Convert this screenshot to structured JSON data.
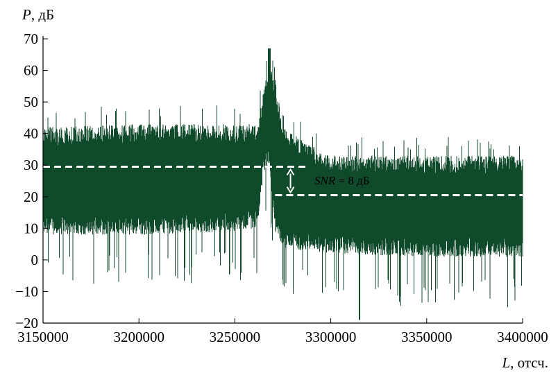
{
  "chart_data": {
    "type": "line",
    "title": "",
    "ylabel_var": "P",
    "ylabel_unit": ", дБ",
    "xlabel_var": "L",
    "xlabel_unit": ", отсч.",
    "xlim": [
      3150000,
      3400000
    ],
    "ylim": [
      -20,
      70
    ],
    "x_ticks": [
      "3150000",
      "3200000",
      "3250000",
      "3300000",
      "3350000",
      "3400000"
    ],
    "y_ticks": [
      "70",
      "60",
      "50",
      "40",
      "30",
      "20",
      "10",
      "0",
      "−10",
      "−20"
    ],
    "x_tick_values": [
      3150000,
      3200000,
      3250000,
      3300000,
      3350000,
      3400000
    ],
    "y_tick_values": [
      70,
      60,
      50,
      40,
      30,
      20,
      10,
      0,
      -10,
      -20
    ],
    "series_color": "#0f4a2a",
    "noise_envelope": [
      {
        "x": 3150000,
        "low": 8,
        "high": 42
      },
      {
        "x": 3200000,
        "low": 8,
        "high": 43
      },
      {
        "x": 3250000,
        "low": 9,
        "high": 43
      },
      {
        "x": 3262000,
        "low": 10,
        "high": 43
      },
      {
        "x": 3265000,
        "low": 28,
        "high": 55
      },
      {
        "x": 3268000,
        "low": 30,
        "high": 63
      },
      {
        "x": 3271000,
        "low": 8,
        "high": 58
      },
      {
        "x": 3275000,
        "low": 4,
        "high": 42
      },
      {
        "x": 3285000,
        "low": 3,
        "high": 38
      },
      {
        "x": 3300000,
        "low": 2,
        "high": 33
      },
      {
        "x": 3350000,
        "low": 1,
        "high": 33
      },
      {
        "x": 3400000,
        "low": 1,
        "high": 33
      }
    ],
    "peak": {
      "x": 3268000,
      "y": 67
    },
    "minimum": {
      "x": 3315000,
      "y": -19
    },
    "annotation": {
      "var": "SNR",
      "text": " = 8 дБ",
      "upper_level": {
        "y": 29.5,
        "x_start": 3150000,
        "x_end": 3287000
      },
      "lower_level": {
        "y": 20.5,
        "x_start": 3271000,
        "x_end": 3400000
      },
      "arrow_x": 3279000
    }
  }
}
